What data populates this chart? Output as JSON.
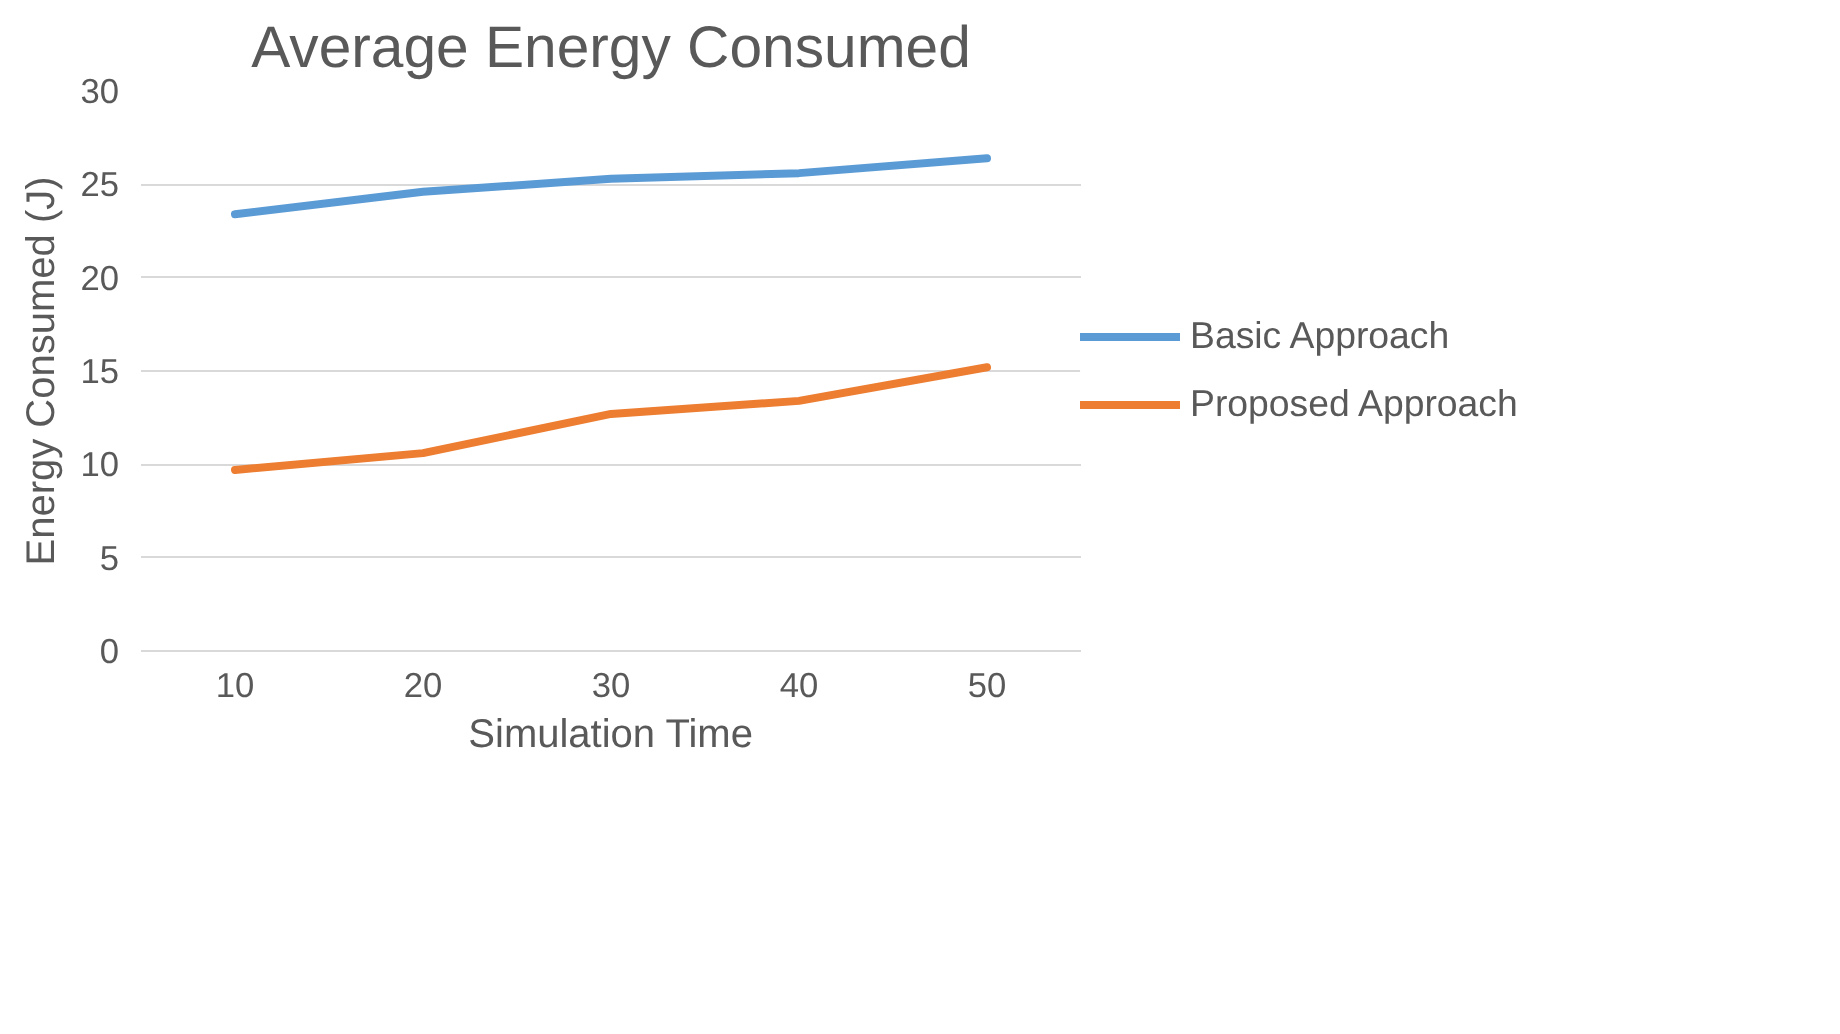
{
  "chart_data": {
    "type": "line",
    "title": "Average Energy Consumed",
    "xlabel": "Simulation Time",
    "ylabel": "Energy Consumed (J)",
    "categories": [
      "10",
      "20",
      "30",
      "40",
      "50"
    ],
    "series": [
      {
        "name": "Basic Approach",
        "color": "#5b9bd5",
        "values": [
          23.4,
          24.6,
          25.3,
          25.6,
          26.4
        ]
      },
      {
        "name": "Proposed Approach",
        "color": "#ed7d31",
        "values": [
          9.7,
          10.6,
          12.7,
          13.4,
          15.2
        ]
      }
    ],
    "ylim": [
      0,
      30
    ],
    "yticks": [
      0,
      5,
      10,
      15,
      20,
      25,
      30
    ],
    "grid": "y",
    "legend": "right",
    "marker": "none",
    "line_style": "solid"
  }
}
